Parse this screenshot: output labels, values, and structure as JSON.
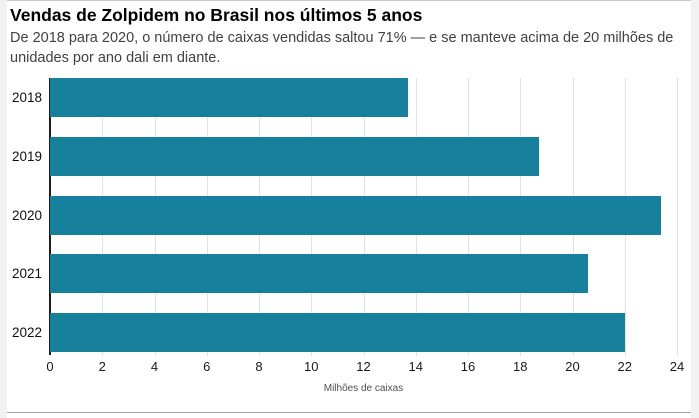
{
  "page": {
    "title": "Vendas de Zolpidem no Brasil nos últimos 5 anos",
    "subtitle": "De 2018 para 2020, o número de caixas vendidas saltou 71% — e se manteve acima de 20 milhões de unidades por ano dali em diante."
  },
  "chart_data": {
    "type": "bar",
    "orientation": "horizontal",
    "title": "Vendas de Zolpidem no Brasil nos últimos 5 anos",
    "subtitle": "De 2018 para 2020, o número de caixas vendidas saltou 71% — e se manteve acima de 20 milhões de unidades por ano dali em diante.",
    "categories": [
      "2018",
      "2019",
      "2020",
      "2021",
      "2022"
    ],
    "values": [
      13.7,
      18.7,
      23.4,
      20.6,
      22.0
    ],
    "xlabel": "Milhões de caixas",
    "ylabel": "",
    "xlim": [
      0,
      24
    ],
    "x_ticks": [
      0,
      2,
      4,
      6,
      8,
      10,
      12,
      14,
      16,
      18,
      20,
      22,
      24
    ],
    "grid": true,
    "legend": false,
    "bar_color": "#17809d",
    "grid_color": "#e2e2e2",
    "axis_line_color": "#1c1c1c"
  }
}
